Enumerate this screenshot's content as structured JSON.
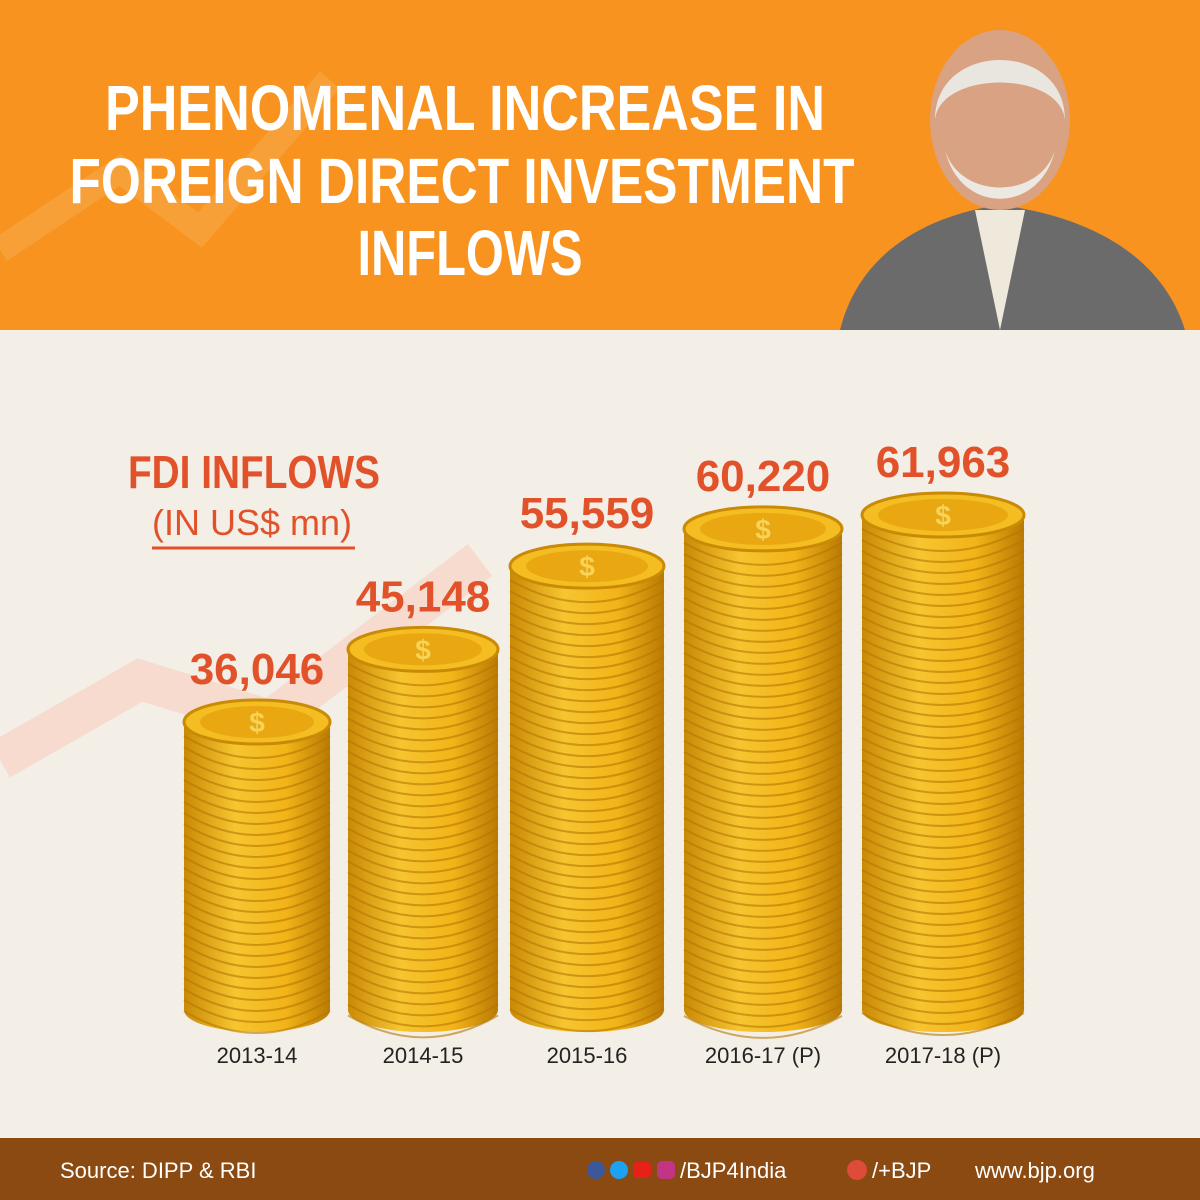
{
  "chart_data": {
    "type": "bar",
    "title": [
      "PHENOMENAL INCREASE IN",
      "FOREIGN DIRECT INVESTMENT",
      "INFLOWS"
    ],
    "subtitle": "FDI INFLOWS",
    "unit_label": "(IN US$ mn)",
    "categories": [
      "2013-14",
      "2014-15",
      "2015-16",
      "2016-17 (P)",
      "2017-18 (P)"
    ],
    "values": [
      36046,
      45148,
      55559,
      60220,
      61963
    ],
    "value_labels": [
      "36,046",
      "45,148",
      "55,559",
      "60,220",
      "61,963"
    ],
    "color": "#f2b418",
    "label_color": "#e2522a"
  },
  "footer": {
    "source": "Source: DIPP & RBI",
    "social_handle": "/BJP4India",
    "gplus_handle": "/+BJP",
    "website": "www.bjp.org"
  }
}
